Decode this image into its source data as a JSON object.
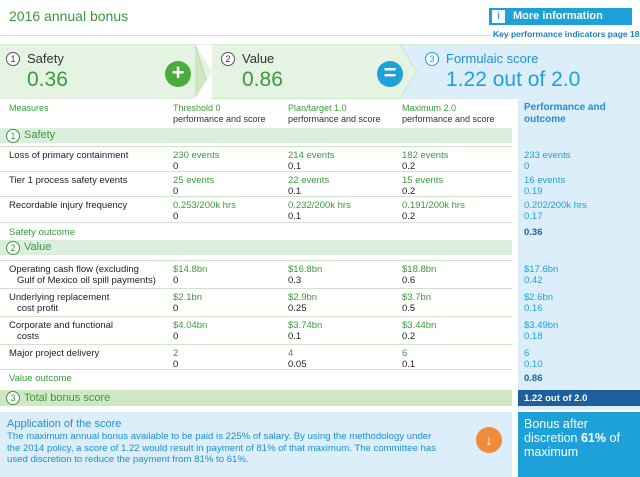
{
  "header": {
    "title": "2016 annual bonus",
    "info_title": "More information",
    "info_link": "Key performance indicators page 18"
  },
  "band": {
    "safety": {
      "num": "1",
      "label": "Safety",
      "value": "0.36"
    },
    "value": {
      "num": "2",
      "label": "Value",
      "value": "0.86"
    },
    "formula": {
      "num": "3",
      "label": "Formulaic score",
      "value": "1.22 out of 2.0"
    },
    "plus": "+",
    "equals": "="
  },
  "columns": {
    "measures": "Measures",
    "threshold_1": "Threshold 0",
    "threshold_2": "performance and score",
    "plan_1": "Plan/target 1.0",
    "plan_2": "performance and score",
    "max_1": "Maximum 2.0",
    "max_2": "performance and score",
    "perf_1": "Performance and",
    "perf_2": "outcome"
  },
  "safety": {
    "num": "1",
    "title": "Safety",
    "rows": [
      {
        "label": "Loss of primary containment",
        "t": "230 events",
        "ts": "0",
        "p": "214 events",
        "ps": "0.1",
        "m": "182 events",
        "ms": "0.2",
        "o": "233 events",
        "os": "0"
      },
      {
        "label": "Tier 1 process safety events",
        "t": "25 events",
        "ts": "0",
        "p": "22 events",
        "ps": "0.1",
        "m": "15 events",
        "ms": "0.2",
        "o": "16 events",
        "os": "0.19"
      },
      {
        "label": "Recordable injury frequency",
        "t": "0.253/200k hrs",
        "ts": "0",
        "p": "0.232/200k hrs",
        "ps": "0.1",
        "m": "0.191/200k hrs",
        "ms": "0.2",
        "o": "0.202/200k hrs",
        "os": "0.17"
      }
    ],
    "outcome_label": "Safety outcome",
    "outcome_value": "0.36"
  },
  "value": {
    "num": "2",
    "title": "Value",
    "rows": [
      {
        "label": "Operating cash flow (excluding",
        "label2": "Gulf of Mexico oil spill payments)",
        "t": "$14.8bn",
        "ts": "0",
        "p": "$16.8bn",
        "ps": "0.3",
        "m": "$18.8bn",
        "ms": "0.6",
        "o": "$17.6bn",
        "os": "0.42"
      },
      {
        "label": "Underlying replacement",
        "label2": "cost profit",
        "t": "$2.1bn",
        "ts": "0",
        "p": "$2.9bn",
        "ps": "0.25",
        "m": "$3.7bn",
        "ms": "0.5",
        "o": "$2.6bn",
        "os": "0.16"
      },
      {
        "label": "Corporate and functional",
        "label2": "costs",
        "t": "$4.04bn",
        "ts": "0",
        "p": "$3.74bn",
        "ps": "0.1",
        "m": "$3.44bn",
        "ms": "0.2",
        "o": "$3.49bn",
        "os": "0.18"
      },
      {
        "label": "Major project delivery",
        "label2": "",
        "t": "2",
        "ts": "0",
        "p": "4",
        "ps": "0.05",
        "m": "6",
        "ms": "0.1",
        "o": "6",
        "os": "0.10"
      }
    ],
    "outcome_label": "Value outcome",
    "outcome_value": "0.86"
  },
  "total": {
    "num": "3",
    "title": "Total bonus score",
    "value": "1.22 out of 2.0"
  },
  "application": {
    "title": "Application of the score",
    "text": "The maximum annual bonus available to be paid is 225% of salary. By using the methodology under the 2014 policy, a score of 1.22 would result in payment of 81% of that maximum. The committee has used discretion to reduce the payment from 81% to 61%.",
    "arrow": "↓",
    "bonus_1": "Bonus after discretion",
    "bonus_pct": "61%",
    "bonus_2": "of maximum"
  },
  "colors": {
    "green": "#3aa23a",
    "blue": "#1ea1d8",
    "navy": "#1e5fa0",
    "orange": "#f08a3c"
  }
}
